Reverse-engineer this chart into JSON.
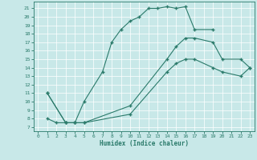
{
  "title": "",
  "xlabel": "Humidex (Indice chaleur)",
  "bg_color": "#c8e8e8",
  "line_color": "#2a7a6a",
  "xlim": [
    -0.5,
    23.5
  ],
  "ylim": [
    6.5,
    21.8
  ],
  "xticks": [
    0,
    1,
    2,
    3,
    4,
    5,
    6,
    7,
    8,
    9,
    10,
    11,
    12,
    13,
    14,
    15,
    16,
    17,
    18,
    19,
    20,
    21,
    22,
    23
  ],
  "yticks": [
    7,
    8,
    9,
    10,
    11,
    12,
    13,
    14,
    15,
    16,
    17,
    18,
    19,
    20,
    21
  ],
  "line1_x": [
    1,
    2,
    3,
    4,
    5,
    7,
    8,
    9,
    10,
    11,
    12,
    13,
    14,
    15,
    16,
    17,
    19
  ],
  "line1_y": [
    8.0,
    7.5,
    7.5,
    7.5,
    10.0,
    13.5,
    17.0,
    18.5,
    19.5,
    20.0,
    21.0,
    21.0,
    21.2,
    21.0,
    21.2,
    18.5,
    18.5
  ],
  "line2_x": [
    1,
    3,
    4,
    5,
    10,
    14,
    15,
    16,
    17,
    19,
    20,
    22,
    23
  ],
  "line2_y": [
    11.0,
    7.5,
    7.5,
    7.5,
    9.5,
    15.0,
    16.5,
    17.5,
    17.5,
    17.0,
    15.0,
    15.0,
    14.0
  ],
  "line3_x": [
    1,
    3,
    4,
    5,
    10,
    14,
    15,
    16,
    17,
    19,
    20,
    22,
    23
  ],
  "line3_y": [
    11.0,
    7.5,
    7.5,
    7.5,
    8.5,
    13.5,
    14.5,
    15.0,
    15.0,
    14.0,
    13.5,
    13.0,
    14.0
  ]
}
